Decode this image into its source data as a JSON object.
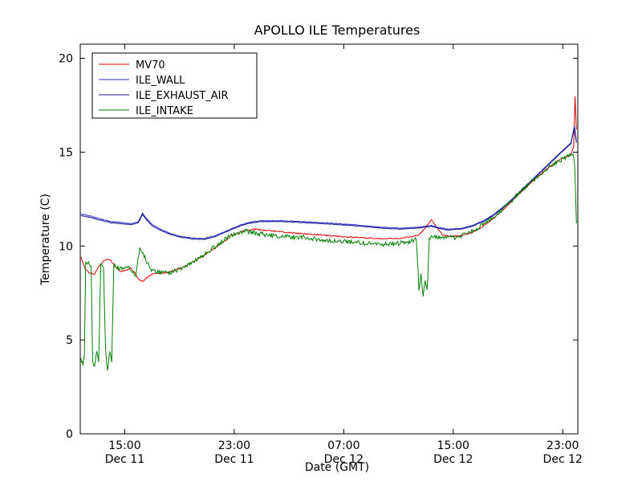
{
  "chart_data": {
    "type": "line",
    "title": "APOLLO ILE Temperatures",
    "xlabel": "Date (GMT)",
    "ylabel": "Temperature (C)",
    "ylim": [
      0,
      20.75
    ],
    "y_ticks": [
      0,
      5,
      10,
      15,
      20
    ],
    "x_unit": "hours since Dec 11 12:00 GMT",
    "xlim_hours": [
      -0.25,
      36.1
    ],
    "x_ticks": [
      {
        "h": 3,
        "time": "15:00",
        "date": "Dec 11"
      },
      {
        "h": 11,
        "time": "23:00",
        "date": "Dec 11"
      },
      {
        "h": 19,
        "time": "07:00",
        "date": "Dec 12"
      },
      {
        "h": 27,
        "time": "15:00",
        "date": "Dec 12"
      },
      {
        "h": 35,
        "time": "23:00",
        "date": "Dec 12"
      }
    ],
    "legend_position": "upper-left",
    "grid": false,
    "series": [
      {
        "name": "MV70",
        "color": "#dd0000",
        "noise": 0.03,
        "points": [
          [
            -0.2,
            9.4
          ],
          [
            0.1,
            8.8
          ],
          [
            0.4,
            8.55
          ],
          [
            0.8,
            8.5
          ],
          [
            1.1,
            8.9
          ],
          [
            1.5,
            9.25
          ],
          [
            1.9,
            9.3
          ],
          [
            2.3,
            8.9
          ],
          [
            2.7,
            8.65
          ],
          [
            3.1,
            8.7
          ],
          [
            3.4,
            8.85
          ],
          [
            3.7,
            8.6
          ],
          [
            4.0,
            8.25
          ],
          [
            4.3,
            8.1
          ],
          [
            4.6,
            8.3
          ],
          [
            5.0,
            8.5
          ],
          [
            5.6,
            8.55
          ],
          [
            6.2,
            8.6
          ],
          [
            7.0,
            8.8
          ],
          [
            8.0,
            9.15
          ],
          [
            9.0,
            9.6
          ],
          [
            10.0,
            10.1
          ],
          [
            10.8,
            10.55
          ],
          [
            11.6,
            10.8
          ],
          [
            12.4,
            10.9
          ],
          [
            13.2,
            10.85
          ],
          [
            14.5,
            10.75
          ],
          [
            16.0,
            10.65
          ],
          [
            18.0,
            10.55
          ],
          [
            20.0,
            10.45
          ],
          [
            21.5,
            10.4
          ],
          [
            23.0,
            10.4
          ],
          [
            24.0,
            10.5
          ],
          [
            24.5,
            10.6
          ],
          [
            25.0,
            11.0
          ],
          [
            25.4,
            11.4
          ],
          [
            25.8,
            11.0
          ],
          [
            26.2,
            10.6
          ],
          [
            26.8,
            10.5
          ],
          [
            27.5,
            10.55
          ],
          [
            28.3,
            10.7
          ],
          [
            29.0,
            10.95
          ],
          [
            30.0,
            11.5
          ],
          [
            31.0,
            12.2
          ],
          [
            32.0,
            12.9
          ],
          [
            33.0,
            13.6
          ],
          [
            34.0,
            14.2
          ],
          [
            35.0,
            14.7
          ],
          [
            35.6,
            14.85
          ],
          [
            35.8,
            15.3
          ],
          [
            35.9,
            18.0
          ],
          [
            36.0,
            16.2
          ]
        ]
      },
      {
        "name": "ILE_WALL",
        "color": "#2a2ad4",
        "noise": 0.015,
        "points": [
          [
            -0.2,
            11.7
          ],
          [
            0.5,
            11.6
          ],
          [
            1.2,
            11.45
          ],
          [
            2.0,
            11.3
          ],
          [
            2.8,
            11.25
          ],
          [
            3.5,
            11.2
          ],
          [
            4.0,
            11.3
          ],
          [
            4.3,
            11.75
          ],
          [
            4.6,
            11.45
          ],
          [
            5.0,
            11.15
          ],
          [
            5.6,
            10.9
          ],
          [
            6.4,
            10.65
          ],
          [
            7.2,
            10.5
          ],
          [
            8.0,
            10.42
          ],
          [
            8.8,
            10.4
          ],
          [
            9.6,
            10.55
          ],
          [
            10.4,
            10.8
          ],
          [
            11.2,
            11.05
          ],
          [
            12.0,
            11.25
          ],
          [
            13.0,
            11.35
          ],
          [
            14.5,
            11.35
          ],
          [
            16.0,
            11.3
          ],
          [
            18.0,
            11.22
          ],
          [
            20.0,
            11.12
          ],
          [
            21.8,
            11.0
          ],
          [
            23.2,
            10.95
          ],
          [
            24.4,
            11.0
          ],
          [
            25.4,
            11.1
          ],
          [
            25.9,
            11.0
          ],
          [
            26.6,
            10.9
          ],
          [
            27.6,
            10.95
          ],
          [
            28.4,
            11.1
          ],
          [
            29.2,
            11.35
          ],
          [
            30.0,
            11.7
          ],
          [
            31.0,
            12.3
          ],
          [
            32.0,
            13.0
          ],
          [
            33.0,
            13.7
          ],
          [
            34.0,
            14.4
          ],
          [
            35.0,
            15.1
          ],
          [
            35.6,
            15.5
          ],
          [
            35.85,
            16.4
          ],
          [
            36.0,
            15.6
          ]
        ]
      },
      {
        "name": "ILE_EXHAUST_AIR",
        "color": "#1a1a8c",
        "noise": 0.015,
        "points": [
          [
            -0.2,
            11.62
          ],
          [
            0.5,
            11.52
          ],
          [
            1.2,
            11.38
          ],
          [
            2.0,
            11.24
          ],
          [
            2.8,
            11.18
          ],
          [
            3.5,
            11.14
          ],
          [
            4.0,
            11.24
          ],
          [
            4.3,
            11.68
          ],
          [
            4.6,
            11.38
          ],
          [
            5.0,
            11.08
          ],
          [
            5.6,
            10.84
          ],
          [
            6.4,
            10.6
          ],
          [
            7.2,
            10.45
          ],
          [
            8.0,
            10.37
          ],
          [
            8.8,
            10.35
          ],
          [
            9.6,
            10.5
          ],
          [
            10.4,
            10.75
          ],
          [
            11.2,
            11.0
          ],
          [
            12.0,
            11.2
          ],
          [
            13.0,
            11.3
          ],
          [
            14.5,
            11.3
          ],
          [
            16.0,
            11.25
          ],
          [
            18.0,
            11.17
          ],
          [
            20.0,
            11.07
          ],
          [
            21.8,
            10.95
          ],
          [
            23.2,
            10.9
          ],
          [
            24.4,
            10.95
          ],
          [
            25.4,
            11.05
          ],
          [
            25.9,
            10.95
          ],
          [
            26.6,
            10.85
          ],
          [
            27.6,
            10.9
          ],
          [
            28.4,
            11.05
          ],
          [
            29.2,
            11.3
          ],
          [
            30.0,
            11.65
          ],
          [
            31.0,
            12.25
          ],
          [
            32.0,
            12.95
          ],
          [
            33.0,
            13.65
          ],
          [
            34.0,
            14.35
          ],
          [
            35.0,
            15.05
          ],
          [
            35.6,
            15.45
          ],
          [
            35.85,
            16.3
          ],
          [
            36.0,
            15.5
          ]
        ]
      },
      {
        "name": "ILE_INTAKE",
        "color": "#008000",
        "noise": 0.12,
        "points": [
          [
            -0.2,
            4.0
          ],
          [
            -0.05,
            3.7
          ],
          [
            0.05,
            4.2
          ],
          [
            0.15,
            9.2
          ],
          [
            0.35,
            9.1
          ],
          [
            0.55,
            9.0
          ],
          [
            0.65,
            3.9
          ],
          [
            0.8,
            3.5
          ],
          [
            0.95,
            4.3
          ],
          [
            1.1,
            3.9
          ],
          [
            1.25,
            9.05
          ],
          [
            1.45,
            8.95
          ],
          [
            1.6,
            4.4
          ],
          [
            1.75,
            3.3
          ],
          [
            1.9,
            4.5
          ],
          [
            2.05,
            3.8
          ],
          [
            2.2,
            9.0
          ],
          [
            2.5,
            8.85
          ],
          [
            2.9,
            8.75
          ],
          [
            3.2,
            8.9
          ],
          [
            3.5,
            8.7
          ],
          [
            3.8,
            8.45
          ],
          [
            4.1,
            9.9
          ],
          [
            4.35,
            9.6
          ],
          [
            4.6,
            9.2
          ],
          [
            4.9,
            8.8
          ],
          [
            5.3,
            8.6
          ],
          [
            5.8,
            8.55
          ],
          [
            6.4,
            8.6
          ],
          [
            7.2,
            8.85
          ],
          [
            8.2,
            9.25
          ],
          [
            9.2,
            9.75
          ],
          [
            10.2,
            10.3
          ],
          [
            11.0,
            10.65
          ],
          [
            11.8,
            10.8
          ],
          [
            12.6,
            10.7
          ],
          [
            13.6,
            10.55
          ],
          [
            14.8,
            10.5
          ],
          [
            16.0,
            10.45
          ],
          [
            17.2,
            10.35
          ],
          [
            18.4,
            10.28
          ],
          [
            19.6,
            10.2
          ],
          [
            20.8,
            10.15
          ],
          [
            22.0,
            10.1
          ],
          [
            23.0,
            10.15
          ],
          [
            23.9,
            10.25
          ],
          [
            24.3,
            10.35
          ],
          [
            24.5,
            7.7
          ],
          [
            24.65,
            8.5
          ],
          [
            24.8,
            7.4
          ],
          [
            24.95,
            8.2
          ],
          [
            25.1,
            7.6
          ],
          [
            25.25,
            10.4
          ],
          [
            25.6,
            10.5
          ],
          [
            26.2,
            10.5
          ],
          [
            26.8,
            10.45
          ],
          [
            27.4,
            10.5
          ],
          [
            28.0,
            10.65
          ],
          [
            29.0,
            11.05
          ],
          [
            30.0,
            11.55
          ],
          [
            31.0,
            12.25
          ],
          [
            32.0,
            12.95
          ],
          [
            33.0,
            13.6
          ],
          [
            34.0,
            14.2
          ],
          [
            35.0,
            14.65
          ],
          [
            35.5,
            14.8
          ],
          [
            35.75,
            15.0
          ],
          [
            35.88,
            14.2
          ],
          [
            36.0,
            11.2
          ]
        ]
      }
    ]
  }
}
